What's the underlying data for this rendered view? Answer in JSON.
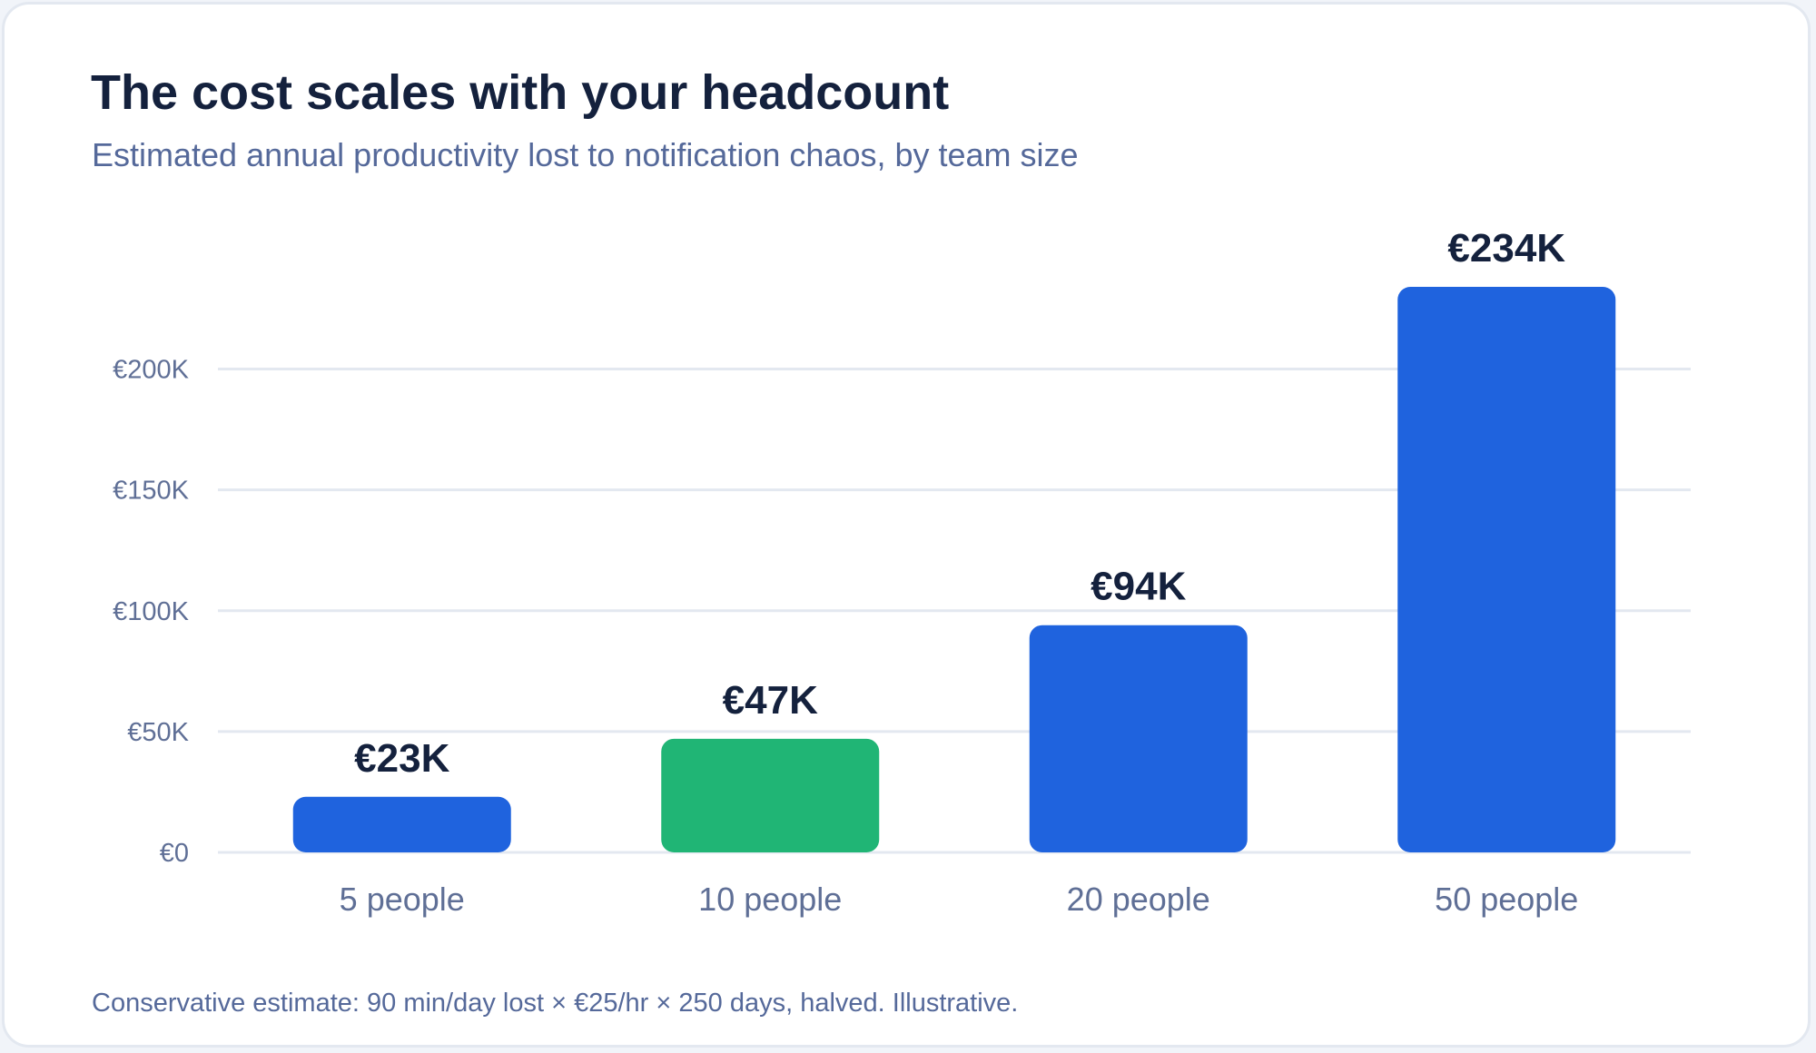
{
  "header": {
    "title": "The cost scales with your headcount",
    "subtitle": "Estimated annual productivity lost to notification chaos, by team size"
  },
  "footnote": "Conservative estimate: 90 min/day lost × €25/hr × 250 days, halved. Illustrative.",
  "colors": {
    "bar_default": "#1f63de",
    "bar_highlight": "#20b575",
    "grid": "#e3e8f0",
    "tick_text": "#5f6f96",
    "value_text": "#14213d"
  },
  "chart_data": {
    "type": "bar",
    "title": "The cost scales with your headcount",
    "subtitle": "Estimated annual productivity lost to notification chaos, by team size",
    "categories": [
      "5 people",
      "10 people",
      "20 people",
      "50 people"
    ],
    "values": [
      23,
      47,
      94,
      234
    ],
    "value_labels": [
      "€23K",
      "€47K",
      "€94K",
      "€234K"
    ],
    "highlight_index": 1,
    "xlabel": "",
    "ylabel": "",
    "ylim": [
      0,
      234
    ],
    "y_ticks": [
      0,
      50,
      100,
      150,
      200
    ],
    "y_tick_labels": [
      "€0",
      "€50K",
      "€100K",
      "€150K",
      "€200K"
    ],
    "grid": true,
    "legend": "none"
  }
}
